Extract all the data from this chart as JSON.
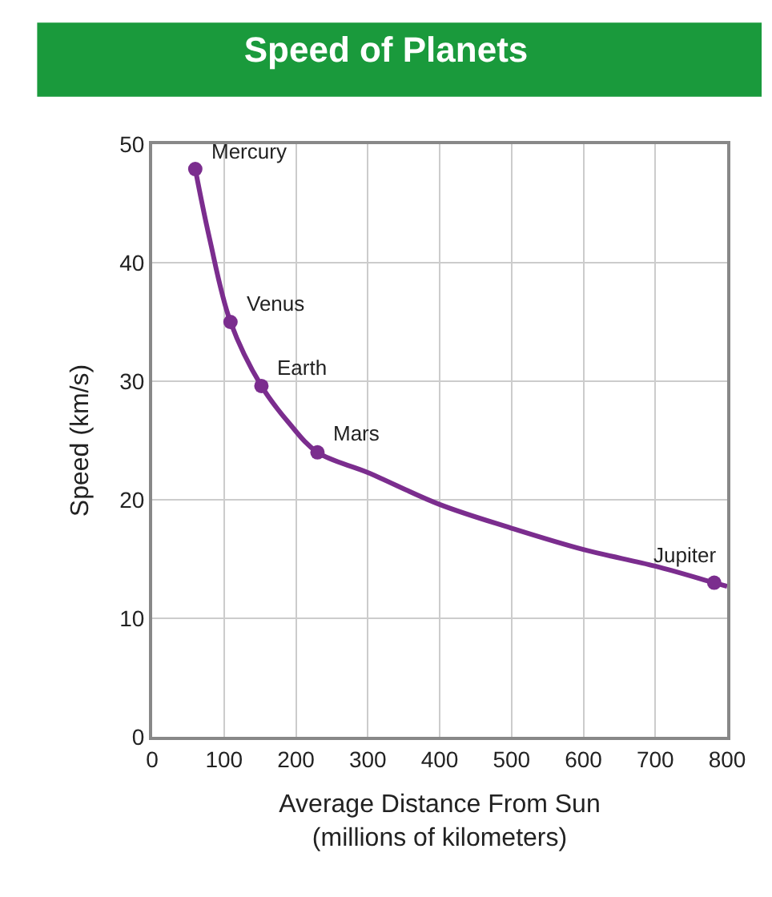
{
  "chart_data": {
    "type": "line",
    "title": "Speed of Planets",
    "xlabel": "Average Distance From Sun\n(millions of kilometers)",
    "ylabel": "Speed (km/s)",
    "xlim": [
      0,
      800
    ],
    "xticks": [
      0,
      100,
      200,
      300,
      400,
      500,
      600,
      700,
      800
    ],
    "ylim": [
      0,
      50
    ],
    "yticks": [
      0,
      10,
      20,
      30,
      40,
      50
    ],
    "grid": true,
    "series": [
      {
        "color": "#7b2d8e",
        "marker": "none",
        "x": [
          60,
          80,
          109,
          152,
          190,
          230,
          300,
          400,
          500,
          600,
          700,
          782,
          800
        ],
        "values": [
          47.9,
          42,
          35,
          29.6,
          26.5,
          24,
          22.3,
          19.6,
          17.6,
          15.8,
          14.4,
          13,
          12.7
        ]
      },
      {
        "type": "scatter",
        "color": "#7b2d8e",
        "marker": "circle",
        "x": [
          60,
          109,
          152,
          230,
          782
        ],
        "values": [
          47.9,
          35,
          29.6,
          24,
          13
        ]
      }
    ],
    "annotations": [
      {
        "text": "Mercury",
        "x": 60,
        "y": 47.9
      },
      {
        "text": "Venus",
        "x": 109,
        "y": 35
      },
      {
        "text": "Earth",
        "x": 152,
        "y": 29.6
      },
      {
        "text": "Mars",
        "x": 230,
        "y": 24
      },
      {
        "text": "Jupiter",
        "x": 782,
        "y": 13
      }
    ]
  }
}
